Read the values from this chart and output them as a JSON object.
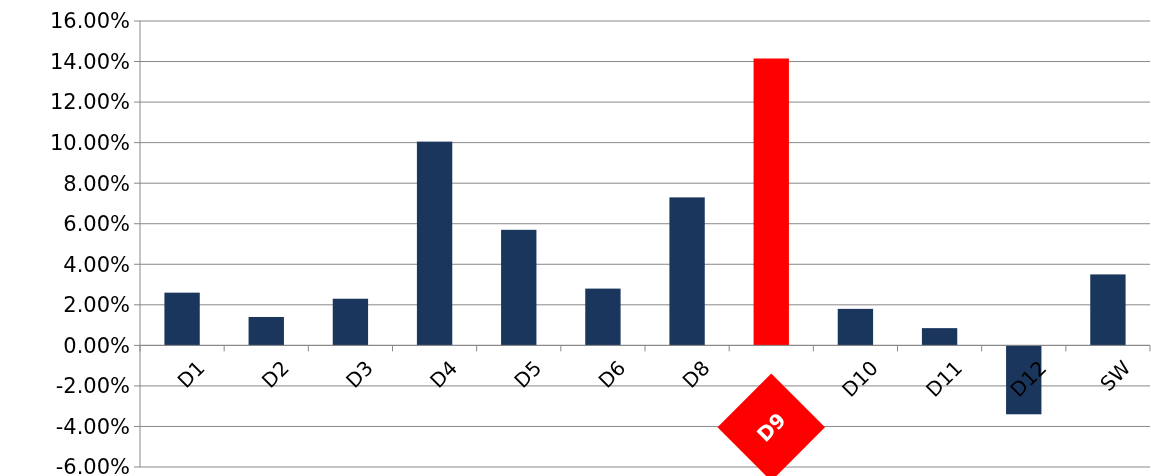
{
  "chart_data": {
    "type": "bar",
    "categories": [
      "D1",
      "D2",
      "D3",
      "D4",
      "D5",
      "D6",
      "D8",
      "D9",
      "D10",
      "D11",
      "D12",
      "SW"
    ],
    "values": [
      2.6,
      1.4,
      2.3,
      10.05,
      5.7,
      2.8,
      7.3,
      14.15,
      1.8,
      0.85,
      -3.4,
      3.5
    ],
    "colors": [
      "#1b365d",
      "#1b365d",
      "#1b365d",
      "#1b365d",
      "#1b365d",
      "#1b365d",
      "#1b365d",
      "#ff0000",
      "#1b365d",
      "#1b365d",
      "#1b365d",
      "#1b365d"
    ],
    "ylim": [
      -6,
      16
    ],
    "yticks": [
      {
        "value": -6,
        "label": "-6.00%"
      },
      {
        "value": -4,
        "label": "-4.00%"
      },
      {
        "value": -2,
        "label": "-2.00%"
      },
      {
        "value": 0,
        "label": "0.00%"
      },
      {
        "value": 2,
        "label": "2.00%"
      },
      {
        "value": 4,
        "label": "4.00%"
      },
      {
        "value": 6,
        "label": "6.00%"
      },
      {
        "value": 8,
        "label": "8.00%"
      },
      {
        "value": 10,
        "label": "10.00%"
      },
      {
        "value": 12,
        "label": "12.00%"
      },
      {
        "value": 14,
        "label": "14.00%"
      },
      {
        "value": 16,
        "label": "16.00%"
      }
    ],
    "grid": "y"
  }
}
